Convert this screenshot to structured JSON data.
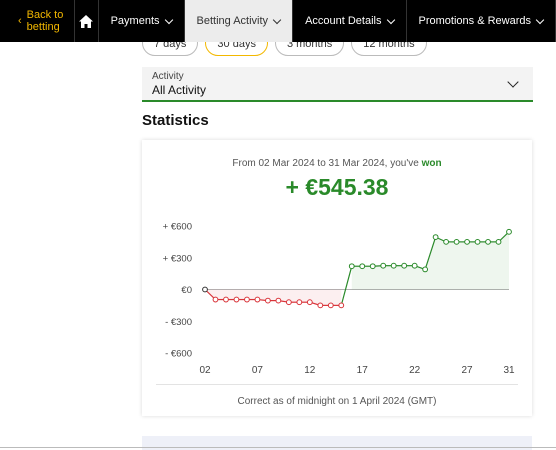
{
  "nav": {
    "back_label": "Back to betting",
    "items": [
      {
        "label": "Payments"
      },
      {
        "label": "Betting Activity"
      },
      {
        "label": "Account Details"
      },
      {
        "label": "Promotions & Rewards"
      }
    ]
  },
  "periods": [
    "7 days",
    "30 days",
    "3 months",
    "12 months"
  ],
  "filter": {
    "label": "Activity",
    "value": "All Activity"
  },
  "statistics": {
    "title": "Statistics",
    "summary_prefix": "From 02 Mar 2024 to 31 Mar 2024, you've",
    "summary_result": "won",
    "amount": "+ €545.38",
    "footnote": "Correct as of midnight on 1 April 2024 (GMT)"
  },
  "colors": {
    "accent": "#f3b800",
    "positive": "#2a8a2a",
    "negative": "#d9343a"
  },
  "chart_data": {
    "type": "line",
    "x_tick_labels": [
      "02",
      "07",
      "12",
      "17",
      "22",
      "27",
      "31"
    ],
    "x_ticks": [
      2,
      7,
      12,
      17,
      22,
      27,
      31
    ],
    "y_tick_labels": [
      "+ €600",
      "+ €300",
      "€0",
      "- €300",
      "- €600"
    ],
    "y_ticks": [
      600,
      300,
      0,
      -300,
      -600
    ],
    "ylim": [
      -600,
      600
    ],
    "xlim": [
      2,
      31
    ],
    "x": [
      2,
      3,
      4,
      5,
      6,
      7,
      8,
      9,
      10,
      11,
      12,
      13,
      14,
      15,
      16,
      17,
      18,
      19,
      20,
      21,
      22,
      23,
      24,
      25,
      26,
      27,
      28,
      29,
      30,
      31
    ],
    "values": [
      0,
      -95,
      -95,
      -95,
      -95,
      -95,
      -105,
      -105,
      -120,
      -120,
      -120,
      -150,
      -150,
      -150,
      220,
      220,
      220,
      225,
      225,
      225,
      225,
      190,
      495,
      450,
      450,
      450,
      450,
      450,
      450,
      545
    ]
  }
}
